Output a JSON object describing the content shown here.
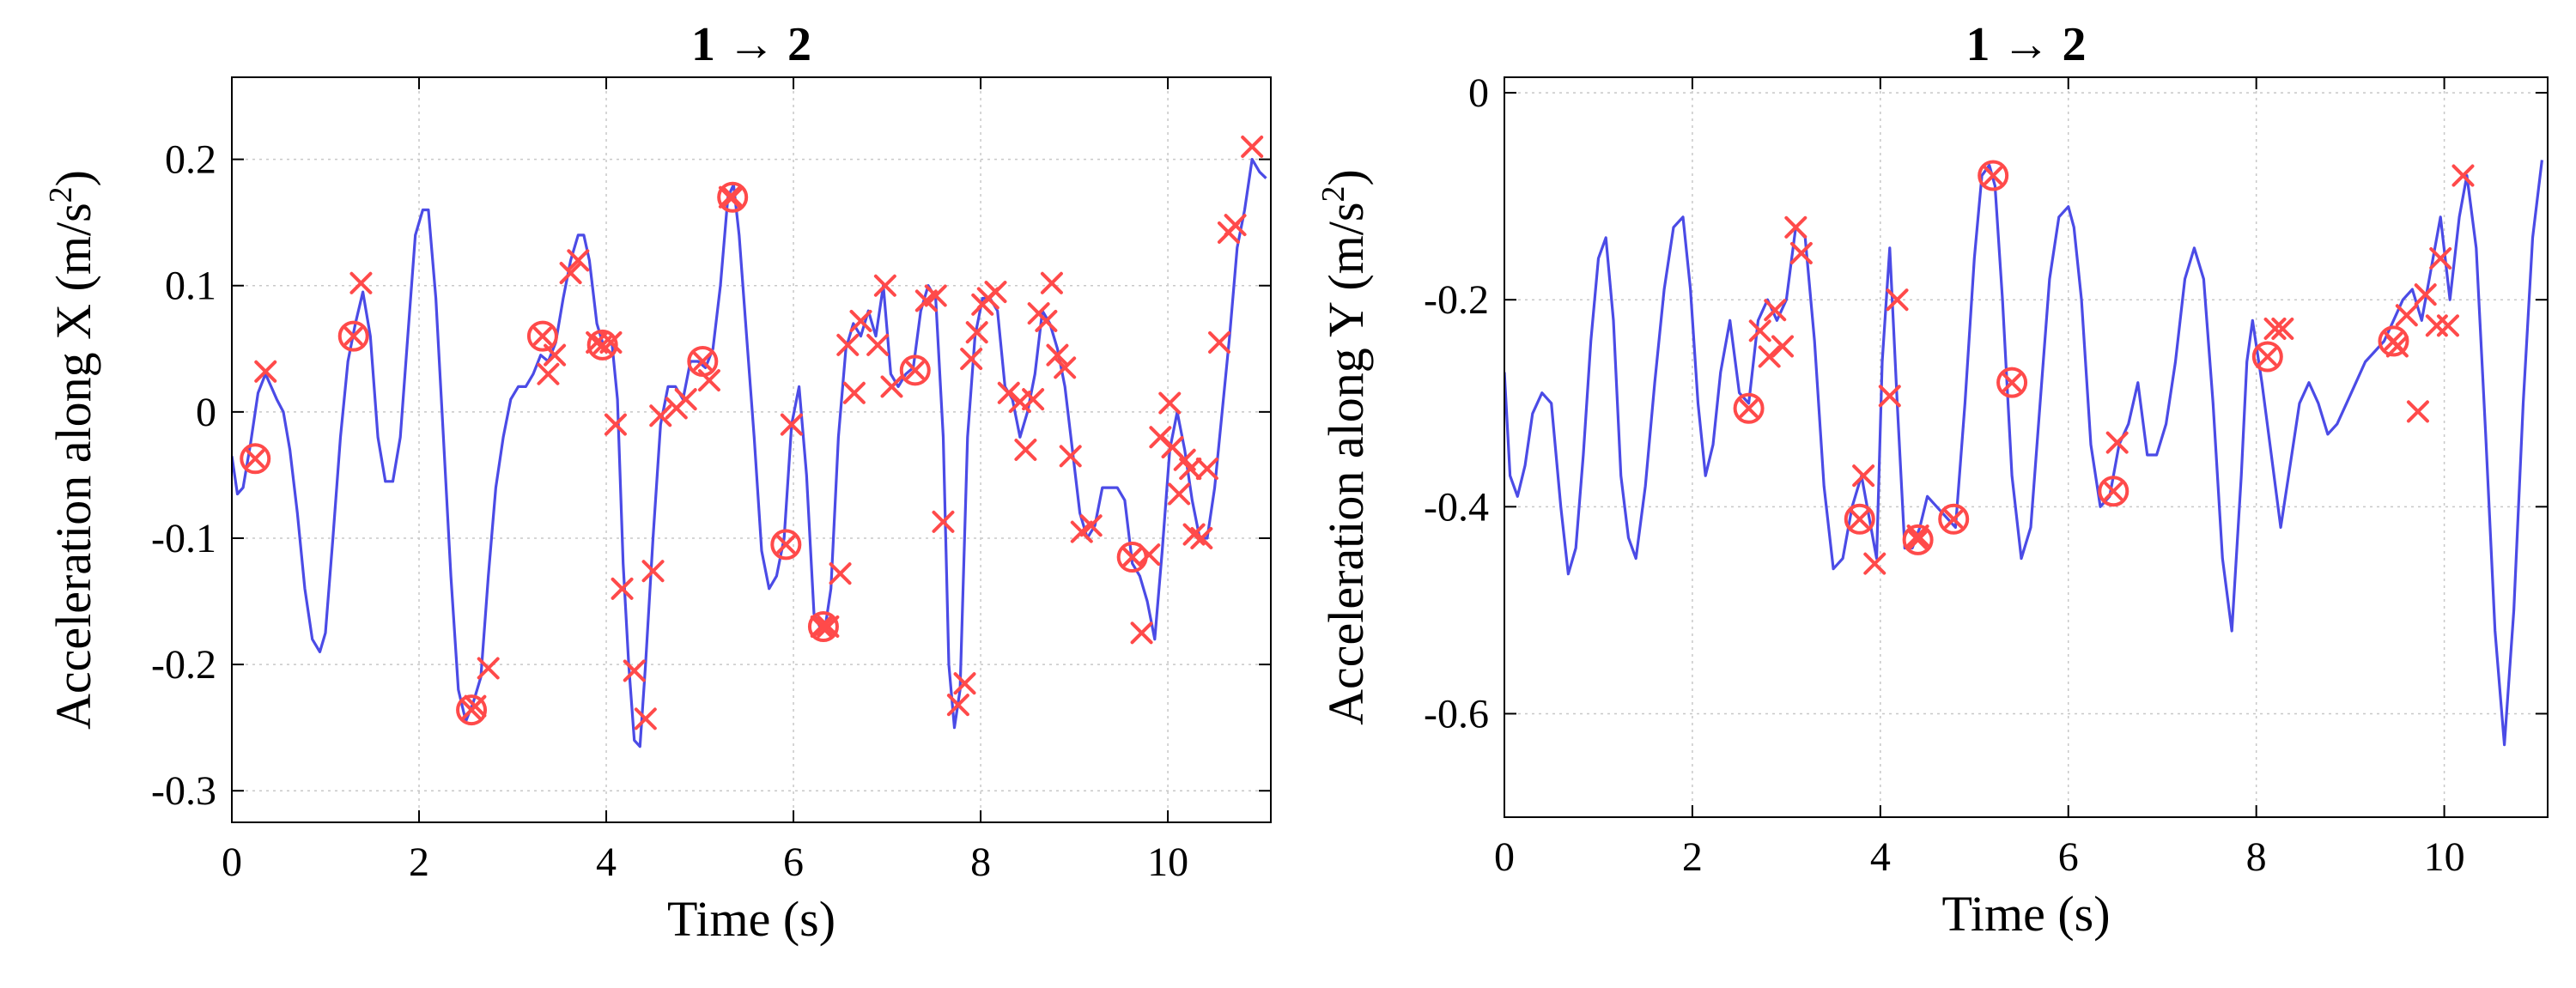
{
  "colors": {
    "signal": "#4b4be6",
    "marker": "#ff4a4a"
  },
  "chart_data": [
    {
      "type": "line",
      "title": "1 → 2",
      "xlabel": "Time (s)",
      "ylabel_main": "Acceleration along X (m/s",
      "ylabel_sup": "2",
      "ylabel_end": ")",
      "xlim": [
        0,
        11.1
      ],
      "ylim": [
        -0.325,
        0.265
      ],
      "xticks": [
        0,
        2,
        4,
        6,
        8,
        10
      ],
      "xtick_labels": [
        "0",
        "2",
        "4",
        "6",
        "8",
        "10"
      ],
      "yticks": [
        -0.3,
        -0.2,
        -0.1,
        0,
        0.1,
        0.2
      ],
      "ytick_labels": [
        "-0.3",
        "-0.2",
        "-0.1",
        "0",
        "0.1",
        "0.2"
      ],
      "grid": true,
      "series": [
        {
          "x": [
            0.0,
            0.06,
            0.12,
            0.2,
            0.28,
            0.36,
            0.42,
            0.48,
            0.55,
            0.62,
            0.7,
            0.78,
            0.86,
            0.94,
            1.0,
            1.08,
            1.16,
            1.24,
            1.32,
            1.4,
            1.48,
            1.56,
            1.64,
            1.72,
            1.8,
            1.88,
            1.96,
            2.04,
            2.1,
            2.18,
            2.26,
            2.34,
            2.42,
            2.5,
            2.58,
            2.66,
            2.74,
            2.82,
            2.9,
            2.98,
            3.06,
            3.14,
            3.22,
            3.3,
            3.38,
            3.46,
            3.54,
            3.62,
            3.7,
            3.76,
            3.82,
            3.9,
            3.98,
            4.06,
            4.12,
            4.18,
            4.24,
            4.3,
            4.36,
            4.42,
            4.5,
            4.58,
            4.66,
            4.74,
            4.82,
            4.9,
            4.98,
            5.06,
            5.14,
            5.22,
            5.3,
            5.36,
            5.42,
            5.5,
            5.58,
            5.66,
            5.74,
            5.82,
            5.9,
            5.98,
            6.06,
            6.14,
            6.22,
            6.28,
            6.34,
            6.4,
            6.48,
            6.56,
            6.64,
            6.72,
            6.8,
            6.88,
            6.96,
            7.04,
            7.12,
            7.2,
            7.28,
            7.36,
            7.44,
            7.52,
            7.6,
            7.66,
            7.72,
            7.78,
            7.86,
            7.94,
            8.02,
            8.1,
            8.18,
            8.26,
            8.34,
            8.42,
            8.5,
            8.58,
            8.66,
            8.74,
            8.82,
            8.9,
            8.98,
            9.06,
            9.14,
            9.22,
            9.3,
            9.38,
            9.46,
            9.54,
            9.62,
            9.7,
            9.78,
            9.86,
            9.94,
            10.02,
            10.1,
            10.18,
            10.26,
            10.34,
            10.42,
            10.5,
            10.58,
            10.66,
            10.74,
            10.82,
            10.9,
            10.98,
            11.05
          ],
          "values": [
            -0.035,
            -0.065,
            -0.06,
            -0.025,
            0.015,
            0.03,
            0.02,
            0.01,
            0.0,
            -0.03,
            -0.08,
            -0.14,
            -0.18,
            -0.19,
            -0.175,
            -0.1,
            -0.02,
            0.04,
            0.07,
            0.095,
            0.06,
            -0.02,
            -0.055,
            -0.055,
            -0.02,
            0.06,
            0.14,
            0.16,
            0.16,
            0.09,
            -0.02,
            -0.13,
            -0.22,
            -0.245,
            -0.23,
            -0.21,
            -0.13,
            -0.06,
            -0.02,
            0.01,
            0.02,
            0.02,
            0.03,
            0.045,
            0.04,
            0.055,
            0.09,
            0.12,
            0.14,
            0.14,
            0.12,
            0.07,
            0.05,
            0.055,
            0.01,
            -0.12,
            -0.2,
            -0.26,
            -0.265,
            -0.2,
            -0.1,
            -0.01,
            0.02,
            0.02,
            0.01,
            0.04,
            0.04,
            0.035,
            0.05,
            0.1,
            0.17,
            0.18,
            0.14,
            0.06,
            -0.02,
            -0.11,
            -0.14,
            -0.13,
            -0.1,
            -0.01,
            0.02,
            -0.05,
            -0.16,
            -0.17,
            -0.17,
            -0.14,
            -0.02,
            0.05,
            0.07,
            0.06,
            0.08,
            0.06,
            0.1,
            0.03,
            0.02,
            0.03,
            0.035,
            0.08,
            0.1,
            0.09,
            -0.02,
            -0.2,
            -0.25,
            -0.22,
            -0.02,
            0.06,
            0.09,
            0.09,
            0.08,
            0.02,
            0.01,
            -0.02,
            0.0,
            0.03,
            0.08,
            0.07,
            0.05,
            0.02,
            -0.03,
            -0.08,
            -0.1,
            -0.09,
            -0.06,
            -0.06,
            -0.06,
            -0.07,
            -0.12,
            -0.13,
            -0.15,
            -0.18,
            -0.11,
            -0.03,
            0.0,
            -0.03,
            -0.07,
            -0.1,
            -0.1,
            -0.06,
            0.0,
            0.06,
            0.13,
            0.16,
            0.2,
            0.19,
            0.185
          ]
        }
      ],
      "cross_markers": [
        [
          0.36,
          0.032
        ],
        [
          1.38,
          0.102
        ],
        [
          2.6,
          -0.233
        ],
        [
          2.74,
          -0.203
        ],
        [
          3.38,
          0.03
        ],
        [
          3.45,
          0.045
        ],
        [
          3.62,
          0.11
        ],
        [
          3.7,
          0.12
        ],
        [
          3.9,
          0.055
        ],
        [
          4.05,
          0.055
        ],
        [
          4.1,
          -0.01
        ],
        [
          4.17,
          -0.14
        ],
        [
          4.3,
          -0.205
        ],
        [
          4.42,
          -0.243
        ],
        [
          4.5,
          -0.126
        ],
        [
          4.58,
          -0.003
        ],
        [
          4.75,
          0.003
        ],
        [
          4.85,
          0.01
        ],
        [
          5.1,
          0.025
        ],
        [
          5.32,
          0.17
        ],
        [
          5.98,
          -0.01
        ],
        [
          6.3,
          -0.17
        ],
        [
          6.37,
          -0.17
        ],
        [
          6.5,
          -0.128
        ],
        [
          6.58,
          0.053
        ],
        [
          6.65,
          0.015
        ],
        [
          6.72,
          0.072
        ],
        [
          6.9,
          0.053
        ],
        [
          6.98,
          0.1
        ],
        [
          7.05,
          0.02
        ],
        [
          7.42,
          0.088
        ],
        [
          7.52,
          0.092
        ],
        [
          7.6,
          -0.087
        ],
        [
          7.76,
          -0.232
        ],
        [
          7.83,
          -0.215
        ],
        [
          7.9,
          0.042
        ],
        [
          7.96,
          0.063
        ],
        [
          8.02,
          0.085
        ],
        [
          8.08,
          0.09
        ],
        [
          8.16,
          0.095
        ],
        [
          8.3,
          0.015
        ],
        [
          8.42,
          0.008
        ],
        [
          8.48,
          -0.03
        ],
        [
          8.56,
          0.01
        ],
        [
          8.62,
          0.078
        ],
        [
          8.7,
          0.072
        ],
        [
          8.76,
          0.102
        ],
        [
          8.82,
          0.045
        ],
        [
          8.9,
          0.035
        ],
        [
          8.96,
          -0.035
        ],
        [
          9.08,
          -0.095
        ],
        [
          9.18,
          -0.09
        ],
        [
          9.62,
          -0.115
        ],
        [
          9.72,
          -0.175
        ],
        [
          9.8,
          -0.113
        ],
        [
          9.92,
          -0.02
        ],
        [
          10.02,
          0.007
        ],
        [
          10.05,
          -0.028
        ],
        [
          10.12,
          -0.065
        ],
        [
          10.18,
          -0.038
        ],
        [
          10.24,
          -0.045
        ],
        [
          10.28,
          -0.097
        ],
        [
          10.36,
          -0.1
        ],
        [
          10.42,
          -0.045
        ],
        [
          10.55,
          0.055
        ],
        [
          10.65,
          0.142
        ],
        [
          10.72,
          0.148
        ],
        [
          10.9,
          0.21
        ]
      ],
      "circle_markers": [
        [
          0.25,
          -0.037
        ],
        [
          1.3,
          0.06
        ],
        [
          2.56,
          -0.236
        ],
        [
          3.32,
          0.06
        ],
        [
          3.96,
          0.053
        ],
        [
          5.03,
          0.04
        ],
        [
          5.35,
          0.17
        ],
        [
          5.92,
          -0.105
        ],
        [
          6.32,
          -0.17
        ],
        [
          7.3,
          0.033
        ],
        [
          9.62,
          -0.115
        ]
      ]
    },
    {
      "type": "line",
      "title": "1 → 2",
      "xlabel": "Time (s)",
      "ylabel_main": "Acceleration along Y (m/s",
      "ylabel_sup": "2",
      "ylabel_end": ")",
      "xlim": [
        0,
        11.1
      ],
      "ylim": [
        -0.7,
        0.015
      ],
      "xticks": [
        0,
        2,
        4,
        6,
        8,
        10
      ],
      "xtick_labels": [
        "0",
        "2",
        "4",
        "6",
        "8",
        "10"
      ],
      "yticks": [
        -0.6,
        -0.4,
        -0.2,
        0
      ],
      "ytick_labels": [
        "-0.6",
        "-0.4",
        "-0.2",
        "0"
      ],
      "grid": true,
      "series": [
        {
          "x": [
            0.0,
            0.06,
            0.14,
            0.22,
            0.3,
            0.4,
            0.5,
            0.6,
            0.68,
            0.76,
            0.84,
            0.92,
            1.0,
            1.08,
            1.16,
            1.24,
            1.32,
            1.4,
            1.5,
            1.6,
            1.7,
            1.8,
            1.9,
            1.98,
            2.06,
            2.14,
            2.22,
            2.3,
            2.4,
            2.5,
            2.6,
            2.7,
            2.8,
            2.9,
            3.0,
            3.1,
            3.2,
            3.3,
            3.4,
            3.5,
            3.6,
            3.7,
            3.8,
            3.9,
            3.96,
            4.02,
            4.1,
            4.18,
            4.26,
            4.34,
            4.42,
            4.5,
            4.6,
            4.7,
            4.8,
            4.9,
            5.0,
            5.08,
            5.16,
            5.22,
            5.3,
            5.4,
            5.5,
            5.6,
            5.7,
            5.8,
            5.9,
            6.0,
            6.06,
            6.14,
            6.24,
            6.34,
            6.44,
            6.54,
            6.64,
            6.74,
            6.84,
            6.94,
            7.04,
            7.14,
            7.24,
            7.34,
            7.44,
            7.54,
            7.64,
            7.74,
            7.84,
            7.9,
            7.96,
            8.06,
            8.16,
            8.26,
            8.36,
            8.46,
            8.56,
            8.66,
            8.76,
            8.86,
            8.96,
            9.06,
            9.16,
            9.26,
            9.36,
            9.46,
            9.56,
            9.66,
            9.76,
            9.86,
            9.96,
            10.06,
            10.16,
            10.24,
            10.34,
            10.44,
            10.54,
            10.64,
            10.74,
            10.84,
            10.94,
            11.04
          ],
          "values": [
            -0.27,
            -0.37,
            -0.39,
            -0.36,
            -0.31,
            -0.29,
            -0.3,
            -0.4,
            -0.465,
            -0.44,
            -0.35,
            -0.24,
            -0.16,
            -0.14,
            -0.22,
            -0.37,
            -0.43,
            -0.45,
            -0.38,
            -0.28,
            -0.19,
            -0.13,
            -0.12,
            -0.19,
            -0.3,
            -0.37,
            -0.34,
            -0.27,
            -0.22,
            -0.29,
            -0.3,
            -0.22,
            -0.2,
            -0.22,
            -0.2,
            -0.13,
            -0.14,
            -0.24,
            -0.38,
            -0.46,
            -0.45,
            -0.4,
            -0.37,
            -0.42,
            -0.45,
            -0.26,
            -0.15,
            -0.3,
            -0.44,
            -0.44,
            -0.42,
            -0.39,
            -0.4,
            -0.41,
            -0.42,
            -0.3,
            -0.16,
            -0.08,
            -0.07,
            -0.09,
            -0.2,
            -0.37,
            -0.45,
            -0.42,
            -0.3,
            -0.18,
            -0.12,
            -0.11,
            -0.13,
            -0.2,
            -0.34,
            -0.4,
            -0.39,
            -0.34,
            -0.32,
            -0.28,
            -0.35,
            -0.35,
            -0.32,
            -0.26,
            -0.18,
            -0.15,
            -0.18,
            -0.3,
            -0.45,
            -0.52,
            -0.37,
            -0.26,
            -0.22,
            -0.28,
            -0.35,
            -0.42,
            -0.36,
            -0.3,
            -0.28,
            -0.3,
            -0.33,
            -0.32,
            -0.3,
            -0.28,
            -0.26,
            -0.25,
            -0.24,
            -0.22,
            -0.2,
            -0.19,
            -0.22,
            -0.17,
            -0.12,
            -0.2,
            -0.12,
            -0.08,
            -0.15,
            -0.33,
            -0.52,
            -0.63,
            -0.5,
            -0.3,
            -0.14,
            -0.065
          ]
        }
      ],
      "cross_markers": [
        [
          2.72,
          -0.23
        ],
        [
          2.82,
          -0.255
        ],
        [
          2.88,
          -0.21
        ],
        [
          2.96,
          -0.245
        ],
        [
          3.1,
          -0.13
        ],
        [
          3.16,
          -0.155
        ],
        [
          3.82,
          -0.37
        ],
        [
          3.94,
          -0.455
        ],
        [
          4.1,
          -0.293
        ],
        [
          4.18,
          -0.2
        ],
        [
          4.4,
          -0.428
        ],
        [
          6.52,
          -0.338
        ],
        [
          8.2,
          -0.228
        ],
        [
          8.28,
          -0.228
        ],
        [
          9.5,
          -0.245
        ],
        [
          9.6,
          -0.215
        ],
        [
          9.72,
          -0.308
        ],
        [
          9.8,
          -0.195
        ],
        [
          9.92,
          -0.225
        ],
        [
          9.96,
          -0.16
        ],
        [
          10.04,
          -0.225
        ],
        [
          10.2,
          -0.08
        ]
      ],
      "circle_markers": [
        [
          2.6,
          -0.305
        ],
        [
          3.78,
          -0.412
        ],
        [
          4.4,
          -0.432
        ],
        [
          4.78,
          -0.412
        ],
        [
          5.2,
          -0.08
        ],
        [
          5.4,
          -0.28
        ],
        [
          6.48,
          -0.385
        ],
        [
          8.12,
          -0.255
        ],
        [
          9.46,
          -0.24
        ]
      ]
    }
  ]
}
